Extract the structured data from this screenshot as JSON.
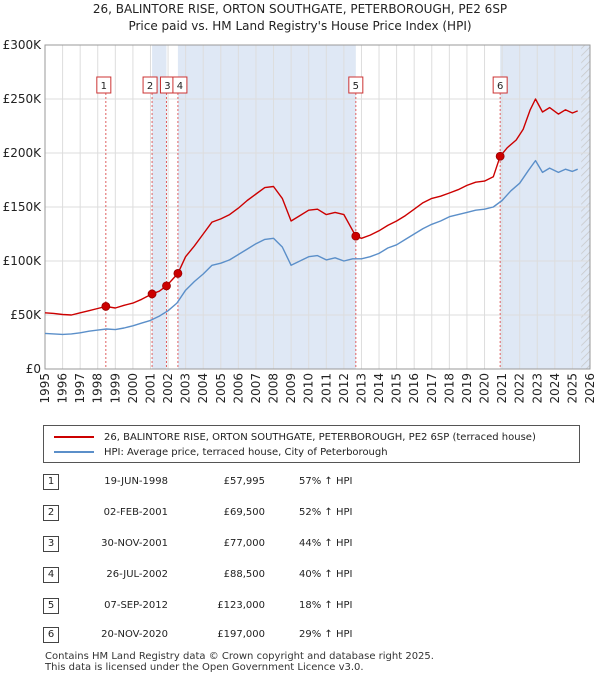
{
  "title_line1": "26, BALINTORE RISE, ORTON SOUTHGATE, PETERBOROUGH, PE2 6SP",
  "title_line2": "Price paid vs. HM Land Registry's House Price Index (HPI)",
  "colors": {
    "property": "#cc0000",
    "hpi": "#5b8fc9",
    "shade": "#dfe8f5",
    "grid": "#dddddd",
    "vline": "#e06060"
  },
  "chart_data": {
    "type": "line",
    "title": "Price paid vs. HM Land Registry's House Price Index (HPI)",
    "xlabel": "",
    "ylabel": "",
    "xlim": [
      1995,
      2026
    ],
    "ylim": [
      0,
      300000
    ],
    "x_ticks": [
      "1995",
      "1996",
      "1997",
      "1998",
      "1999",
      "2000",
      "2001",
      "2002",
      "2003",
      "2004",
      "2005",
      "2006",
      "2007",
      "2008",
      "2009",
      "2010",
      "2011",
      "2012",
      "2013",
      "2014",
      "2015",
      "2016",
      "2017",
      "2018",
      "2019",
      "2020",
      "2021",
      "2022",
      "2023",
      "2024",
      "2025",
      "2026"
    ],
    "y_ticks": [
      {
        "value": 0,
        "label": "£0"
      },
      {
        "value": 50000,
        "label": "£50K"
      },
      {
        "value": 100000,
        "label": "£100K"
      },
      {
        "value": 150000,
        "label": "£150K"
      },
      {
        "value": 200000,
        "label": "£200K"
      },
      {
        "value": 250000,
        "label": "£250K"
      },
      {
        "value": 300000,
        "label": "£300K"
      }
    ],
    "series": [
      {
        "name": "26, BALINTORE RISE, ORTON SOUTHGATE, PETERBOROUGH, PE2 6SP (terraced house)",
        "color": "#cc0000",
        "points": [
          [
            1995.0,
            52000
          ],
          [
            1995.5,
            51500
          ],
          [
            1996.0,
            50500
          ],
          [
            1996.5,
            50000
          ],
          [
            1997.0,
            52000
          ],
          [
            1997.5,
            54000
          ],
          [
            1998.0,
            56000
          ],
          [
            1998.46,
            57995
          ],
          [
            1999.0,
            56500
          ],
          [
            1999.5,
            59000
          ],
          [
            2000.0,
            61000
          ],
          [
            2000.5,
            64500
          ],
          [
            2001.09,
            69500
          ],
          [
            2001.5,
            72000
          ],
          [
            2001.91,
            77000
          ],
          [
            2002.2,
            82000
          ],
          [
            2002.56,
            88500
          ],
          [
            2003.0,
            104000
          ],
          [
            2003.5,
            114000
          ],
          [
            2004.0,
            125000
          ],
          [
            2004.5,
            136000
          ],
          [
            2005.0,
            139000
          ],
          [
            2005.5,
            143000
          ],
          [
            2006.0,
            149000
          ],
          [
            2006.5,
            156000
          ],
          [
            2007.0,
            162000
          ],
          [
            2007.5,
            168000
          ],
          [
            2008.0,
            169000
          ],
          [
            2008.5,
            158000
          ],
          [
            2009.0,
            137000
          ],
          [
            2009.5,
            142000
          ],
          [
            2010.0,
            147000
          ],
          [
            2010.5,
            148000
          ],
          [
            2011.0,
            143000
          ],
          [
            2011.5,
            145000
          ],
          [
            2012.0,
            143000
          ],
          [
            2012.68,
            123000
          ],
          [
            2013.0,
            121000
          ],
          [
            2013.5,
            124000
          ],
          [
            2014.0,
            128000
          ],
          [
            2014.5,
            133000
          ],
          [
            2015.0,
            137000
          ],
          [
            2015.5,
            142000
          ],
          [
            2016.0,
            148000
          ],
          [
            2016.5,
            154000
          ],
          [
            2017.0,
            158000
          ],
          [
            2017.5,
            160000
          ],
          [
            2018.0,
            163000
          ],
          [
            2018.5,
            166000
          ],
          [
            2019.0,
            170000
          ],
          [
            2019.5,
            173000
          ],
          [
            2020.0,
            174000
          ],
          [
            2020.5,
            178000
          ],
          [
            2020.89,
            197000
          ],
          [
            2021.3,
            205000
          ],
          [
            2021.8,
            212000
          ],
          [
            2022.2,
            222000
          ],
          [
            2022.6,
            240000
          ],
          [
            2022.9,
            250000
          ],
          [
            2023.3,
            238000
          ],
          [
            2023.7,
            242000
          ],
          [
            2024.2,
            236000
          ],
          [
            2024.6,
            240000
          ],
          [
            2025.0,
            237000
          ],
          [
            2025.3,
            239000
          ]
        ]
      },
      {
        "name": "HPI: Average price, terraced house, City of Peterborough",
        "color": "#5b8fc9",
        "points": [
          [
            1995.0,
            33000
          ],
          [
            1995.5,
            32500
          ],
          [
            1996.0,
            32000
          ],
          [
            1996.5,
            32500
          ],
          [
            1997.0,
            33500
          ],
          [
            1997.5,
            35000
          ],
          [
            1998.0,
            36000
          ],
          [
            1998.5,
            37000
          ],
          [
            1999.0,
            36500
          ],
          [
            1999.5,
            38000
          ],
          [
            2000.0,
            40000
          ],
          [
            2000.5,
            42500
          ],
          [
            2001.0,
            45000
          ],
          [
            2001.5,
            49000
          ],
          [
            2002.0,
            54000
          ],
          [
            2002.5,
            61000
          ],
          [
            2003.0,
            73000
          ],
          [
            2003.5,
            81000
          ],
          [
            2004.0,
            88000
          ],
          [
            2004.5,
            96000
          ],
          [
            2005.0,
            98000
          ],
          [
            2005.5,
            101000
          ],
          [
            2006.0,
            106000
          ],
          [
            2006.5,
            111000
          ],
          [
            2007.0,
            116000
          ],
          [
            2007.5,
            120000
          ],
          [
            2008.0,
            121000
          ],
          [
            2008.5,
            113000
          ],
          [
            2009.0,
            96000
          ],
          [
            2009.5,
            100000
          ],
          [
            2010.0,
            104000
          ],
          [
            2010.5,
            105000
          ],
          [
            2011.0,
            101000
          ],
          [
            2011.5,
            103000
          ],
          [
            2012.0,
            100000
          ],
          [
            2012.5,
            102000
          ],
          [
            2013.0,
            102000
          ],
          [
            2013.5,
            104000
          ],
          [
            2014.0,
            107000
          ],
          [
            2014.5,
            112000
          ],
          [
            2015.0,
            115000
          ],
          [
            2015.5,
            120000
          ],
          [
            2016.0,
            125000
          ],
          [
            2016.5,
            130000
          ],
          [
            2017.0,
            134000
          ],
          [
            2017.5,
            137000
          ],
          [
            2018.0,
            141000
          ],
          [
            2018.5,
            143000
          ],
          [
            2019.0,
            145000
          ],
          [
            2019.5,
            147000
          ],
          [
            2020.0,
            148000
          ],
          [
            2020.5,
            150000
          ],
          [
            2021.0,
            156000
          ],
          [
            2021.5,
            165000
          ],
          [
            2022.0,
            172000
          ],
          [
            2022.5,
            184000
          ],
          [
            2022.9,
            193000
          ],
          [
            2023.3,
            182000
          ],
          [
            2023.7,
            186000
          ],
          [
            2024.2,
            182000
          ],
          [
            2024.6,
            185000
          ],
          [
            2025.0,
            183000
          ],
          [
            2025.3,
            185000
          ]
        ]
      }
    ],
    "sales": [
      {
        "id": "1",
        "x": 1998.46,
        "price": 57995
      },
      {
        "id": "2",
        "x": 2001.09,
        "price": 69500
      },
      {
        "id": "3",
        "x": 2001.91,
        "price": 77000
      },
      {
        "id": "4",
        "x": 2002.56,
        "price": 88500
      },
      {
        "id": "5",
        "x": 2012.68,
        "price": 123000
      },
      {
        "id": "6",
        "x": 2020.89,
        "price": 197000
      }
    ],
    "shaded_ranges": [
      [
        2001.09,
        2001.91
      ],
      [
        2002.56,
        2012.68
      ],
      [
        2020.89,
        2026
      ]
    ],
    "hatch_from": 2025.5
  },
  "legend": {
    "property_label": "26, BALINTORE RISE, ORTON SOUTHGATE, PETERBOROUGH, PE2 6SP (terraced house)",
    "hpi_label": "HPI: Average price, terraced house, City of Peterborough"
  },
  "sales_table": [
    {
      "num": "1",
      "date": "19-JUN-1998",
      "price": "£57,995",
      "hpi": "57% ↑ HPI"
    },
    {
      "num": "2",
      "date": "02-FEB-2001",
      "price": "£69,500",
      "hpi": "52% ↑ HPI"
    },
    {
      "num": "3",
      "date": "30-NOV-2001",
      "price": "£77,000",
      "hpi": "44% ↑ HPI"
    },
    {
      "num": "4",
      "date": "26-JUL-2002",
      "price": "£88,500",
      "hpi": "40% ↑ HPI"
    },
    {
      "num": "5",
      "date": "07-SEP-2012",
      "price": "£123,000",
      "hpi": "18% ↑ HPI"
    },
    {
      "num": "6",
      "date": "20-NOV-2020",
      "price": "£197,000",
      "hpi": "29% ↑ HPI"
    }
  ],
  "footer": {
    "line1": "Contains HM Land Registry data © Crown copyright and database right 2025.",
    "line2": "This data is licensed under the Open Government Licence v3.0."
  }
}
